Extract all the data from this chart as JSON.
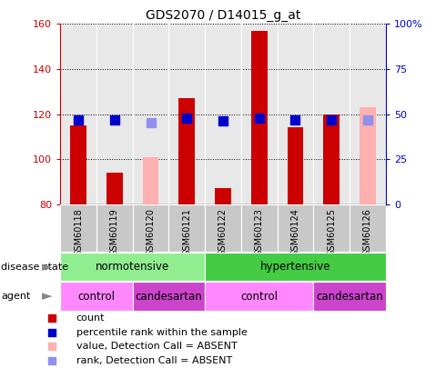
{
  "title": "GDS2070 / D14015_g_at",
  "samples": [
    "GSM60118",
    "GSM60119",
    "GSM60120",
    "GSM60121",
    "GSM60122",
    "GSM60123",
    "GSM60124",
    "GSM60125",
    "GSM60126"
  ],
  "count_values": [
    115,
    94,
    null,
    127,
    87,
    157,
    114,
    120,
    null
  ],
  "count_absent": [
    null,
    null,
    101,
    null,
    null,
    null,
    null,
    null,
    123
  ],
  "rank_values": [
    47,
    47,
    null,
    48,
    46,
    48,
    47,
    47,
    null
  ],
  "rank_absent": [
    null,
    null,
    45,
    null,
    null,
    null,
    null,
    null,
    47
  ],
  "ymin": 80,
  "ymax": 160,
  "yticks_left": [
    80,
    100,
    120,
    140,
    160
  ],
  "yticks_right": [
    0,
    25,
    50,
    75,
    100
  ],
  "yticks_right_labels": [
    "0",
    "25",
    "50",
    "75",
    "100%"
  ],
  "disease_state": [
    {
      "label": "normotensive",
      "start": 0,
      "end": 4,
      "color": "#90EE90"
    },
    {
      "label": "hypertensive",
      "start": 4,
      "end": 9,
      "color": "#44CC44"
    }
  ],
  "agent": [
    {
      "label": "control",
      "start": 0,
      "end": 2,
      "color": "#FF88FF"
    },
    {
      "label": "candesartan",
      "start": 2,
      "end": 4,
      "color": "#CC44CC"
    },
    {
      "label": "control",
      "start": 4,
      "end": 7,
      "color": "#FF88FF"
    },
    {
      "label": "candesartan",
      "start": 7,
      "end": 9,
      "color": "#CC44CC"
    }
  ],
  "bar_color_present": "#CC0000",
  "bar_color_absent": "#FFB0B0",
  "rank_color_present": "#0000CC",
  "rank_color_absent": "#9090EE",
  "bar_width": 0.45,
  "rank_marker_size": 45,
  "left_axis_color": "#CC0000",
  "right_axis_color": "#0000CC",
  "plot_bg_color": "#E8E8E8",
  "sample_box_color": "#C8C8C8",
  "legend": [
    {
      "color": "#CC0000",
      "label": "count"
    },
    {
      "color": "#0000CC",
      "label": "percentile rank within the sample"
    },
    {
      "color": "#FFB0B0",
      "label": "value, Detection Call = ABSENT"
    },
    {
      "color": "#9090EE",
      "label": "rank, Detection Call = ABSENT"
    }
  ]
}
